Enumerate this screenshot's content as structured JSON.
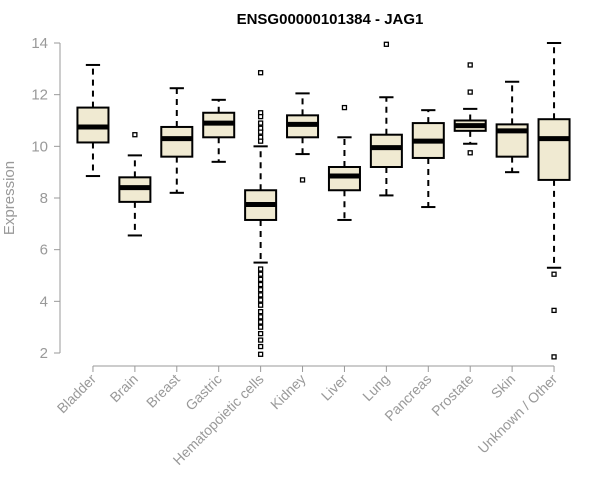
{
  "chart_data": {
    "type": "boxplot",
    "title": "ENSG00000101384 - JAG1",
    "ylabel": "Expression",
    "xlabel": "",
    "ylim": [
      2,
      14
    ],
    "yticks": [
      2,
      4,
      6,
      8,
      10,
      12,
      14
    ],
    "grid": false,
    "legend": "none",
    "box_color": "#f0ead2",
    "median_color": "#000000",
    "categories": [
      "Bladder",
      "Brain",
      "Breast",
      "Gastric",
      "Hematopoietic cells",
      "Kidney",
      "Liver",
      "Lung",
      "Pancreas",
      "Prostate",
      "Skin",
      "Unknown / Other"
    ],
    "boxes": [
      {
        "name": "Bladder",
        "whisker_low": 8.85,
        "q1": 10.15,
        "median": 10.75,
        "q3": 11.5,
        "whisker_high": 13.15,
        "outliers": []
      },
      {
        "name": "Brain",
        "whisker_low": 6.55,
        "q1": 7.85,
        "median": 8.4,
        "q3": 8.8,
        "whisker_high": 9.65,
        "outliers": [
          10.45
        ]
      },
      {
        "name": "Breast",
        "whisker_low": 8.2,
        "q1": 9.6,
        "median": 10.3,
        "q3": 10.75,
        "whisker_high": 12.25,
        "outliers": []
      },
      {
        "name": "Gastric",
        "whisker_low": 9.4,
        "q1": 10.35,
        "median": 10.9,
        "q3": 11.3,
        "whisker_high": 11.8,
        "outliers": []
      },
      {
        "name": "Hematopoietic cells",
        "whisker_low": 5.5,
        "q1": 7.15,
        "median": 7.75,
        "q3": 8.3,
        "whisker_high": 10.0,
        "outliers": [
          12.85,
          11.3,
          11.15,
          10.9,
          10.7,
          10.55,
          10.35,
          10.2,
          5.25,
          5.05,
          4.85,
          4.65,
          4.45,
          4.25,
          4.05,
          3.85,
          3.6,
          3.4,
          3.2,
          3.0,
          2.75,
          2.5,
          2.25,
          1.95
        ]
      },
      {
        "name": "Kidney",
        "whisker_low": 9.7,
        "q1": 10.35,
        "median": 10.85,
        "q3": 11.2,
        "whisker_high": 12.05,
        "outliers": [
          8.7
        ]
      },
      {
        "name": "Liver",
        "whisker_low": 7.15,
        "q1": 8.3,
        "median": 8.85,
        "q3": 9.2,
        "whisker_high": 10.35,
        "outliers": [
          11.5
        ]
      },
      {
        "name": "Lung",
        "whisker_low": 8.1,
        "q1": 9.2,
        "median": 9.95,
        "q3": 10.45,
        "whisker_high": 11.9,
        "outliers": [
          13.95
        ]
      },
      {
        "name": "Pancreas",
        "whisker_low": 7.65,
        "q1": 9.55,
        "median": 10.2,
        "q3": 10.9,
        "whisker_high": 11.4,
        "outliers": []
      },
      {
        "name": "Prostate",
        "whisker_low": 10.1,
        "q1": 10.6,
        "median": 10.8,
        "q3": 11.0,
        "whisker_high": 11.45,
        "outliers": [
          13.15,
          12.1,
          9.75
        ]
      },
      {
        "name": "Skin",
        "whisker_low": 9.0,
        "q1": 9.6,
        "median": 10.6,
        "q3": 10.85,
        "whisker_high": 12.5,
        "outliers": []
      },
      {
        "name": "Unknown / Other",
        "whisker_low": 5.3,
        "q1": 8.7,
        "median": 10.3,
        "q3": 11.05,
        "whisker_high": 14.0,
        "outliers": [
          5.05,
          3.65,
          1.85
        ]
      }
    ]
  }
}
